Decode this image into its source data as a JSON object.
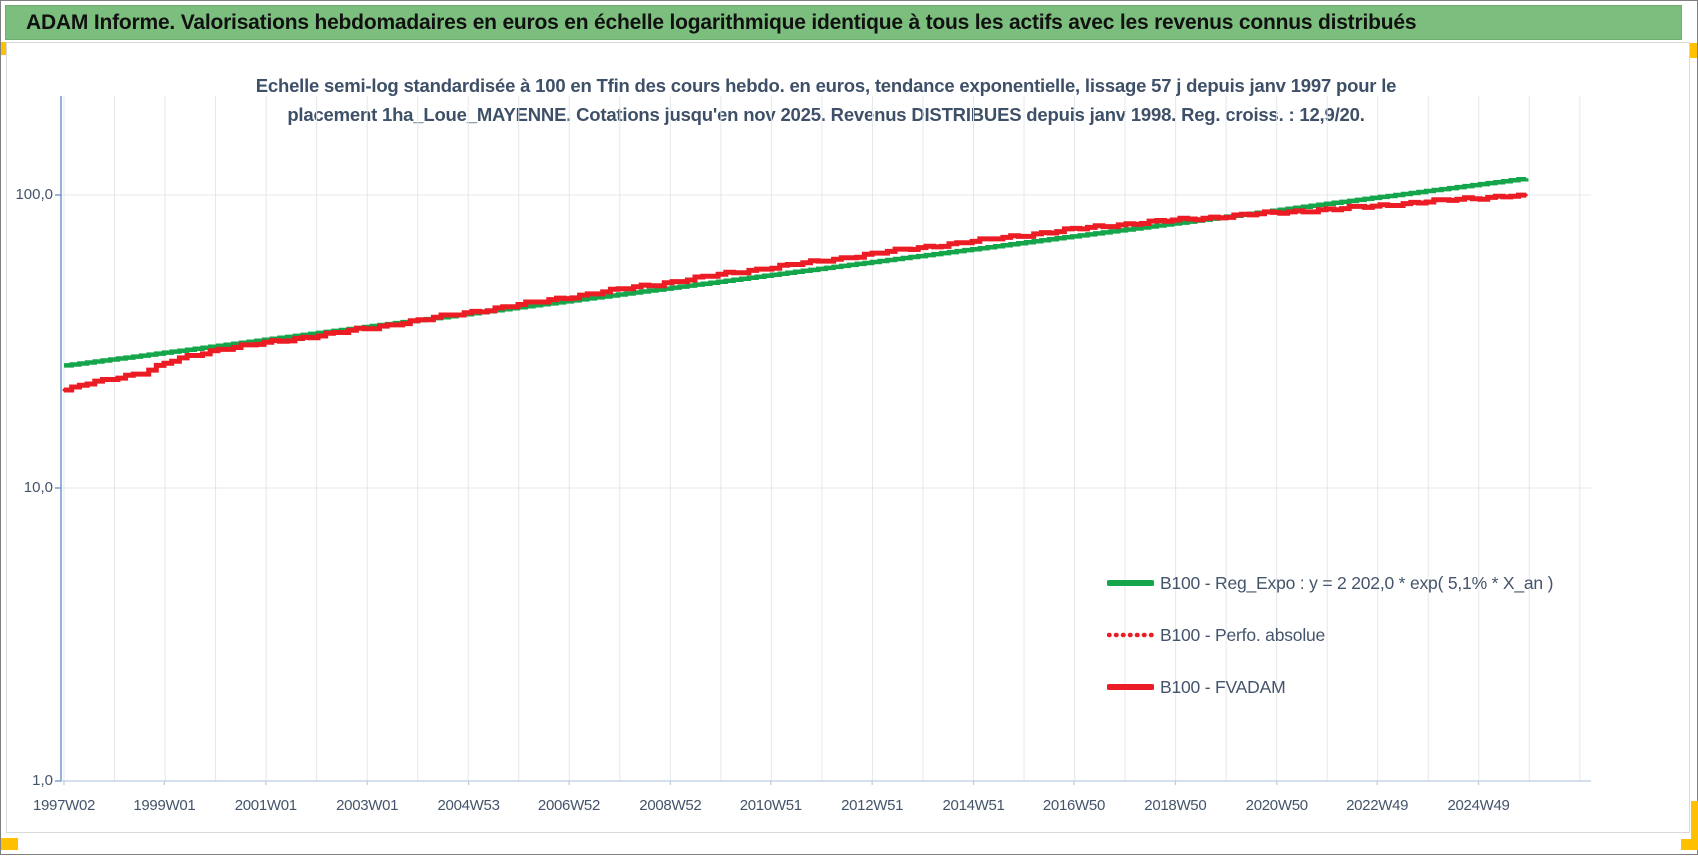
{
  "header": {
    "title": "ADAM Informe. Valorisations hebdomadaires en euros en échelle logarithmique identique à tous les actifs avec les revenus connus distribués"
  },
  "colors": {
    "header_green": "#7CBE7D",
    "handle_orange": "#FFC000",
    "title_text": "#3E5068",
    "axis_text": "#44546A",
    "series_green": "#15A64C",
    "series_red": "#EC1C24",
    "gridline": "#E4E8EC",
    "y_axis_line": "#5B87C5",
    "x_axis_line": "#BCCDE0"
  },
  "chart_data": {
    "type": "line",
    "title": "Echelle semi-log standardisée à 100 en Tfin des cours hebdo. en euros, tendance exponentielle, lissage 57 j depuis janv 1997 pour le placement 1ha_Loue_MAYENNE. Cotations jusqu'en nov 2025. Revenus DISTRIBUES depuis janv 1998. Reg. croiss. : 12,9/20.",
    "title_lines": [
      "Echelle semi-log standardisée à 100 en Tfin des cours hebdo. en euros, tendance exponentielle, lissage 57 j depuis janv 1997 pour le",
      "placement 1ha_Loue_MAYENNE. Cotations jusqu'en nov 2025. Revenus DISTRIBUES depuis janv 1998. Reg. croiss. : 12,9/20."
    ],
    "y_axis": {
      "scale": "log",
      "tick_labels": [
        "1,0",
        "10,0",
        "100,0"
      ],
      "tick_values": [
        1,
        10,
        100
      ],
      "min": 1,
      "max": 218,
      "grid": true
    },
    "x_axis": {
      "tick_labels": [
        "1997W02",
        "1999W01",
        "2001W01",
        "2003W01",
        "2004W53",
        "2006W52",
        "2008W52",
        "2010W51",
        "2012W51",
        "2014W51",
        "2016W50",
        "2018W50",
        "2020W50",
        "2022W49",
        "2024W49"
      ],
      "tick_years": [
        1997.03,
        1999.01,
        2001.01,
        2003.01,
        2005.01,
        2006.99,
        2008.99,
        2010.97,
        2012.97,
        2014.97,
        2016.95,
        2018.95,
        2020.95,
        2022.93,
        2024.93
      ],
      "minor_grid_step_years": 0.9966,
      "grid": true
    },
    "x_range": [
      1997.03,
      2025.87
    ],
    "legend": {
      "position": "inside-right-lower"
    },
    "series": [
      {
        "name": "B100 - Reg_Expo : y = 2 202,0 * exp( 5,1% *  X_an )",
        "color": "#15A64C",
        "style": "solid",
        "width": 4.5,
        "render": "trend",
        "points": [
          [
            1997.03,
            26.2
          ],
          [
            2025.87,
            114.1
          ]
        ]
      },
      {
        "name": "B100 - Perfo. absolue",
        "color": "#EC1C24",
        "style": "dotted",
        "width": 3,
        "render": "step",
        "points": [
          [
            1997.03,
            21.6
          ],
          [
            1997.5,
            22.8
          ],
          [
            1998.0,
            23.8
          ],
          [
            1998.6,
            24.8
          ],
          [
            1999.1,
            27.0
          ],
          [
            1999.6,
            28.6
          ],
          [
            2000.1,
            29.8
          ],
          [
            2000.6,
            30.6
          ],
          [
            2001.1,
            31.5
          ],
          [
            2002.1,
            33.3
          ],
          [
            2003.1,
            35.3
          ],
          [
            2004.1,
            37.6
          ],
          [
            2005.1,
            40.0
          ],
          [
            2006.1,
            42.5
          ],
          [
            2007.1,
            45.2
          ],
          [
            2008.1,
            48.0
          ],
          [
            2009.1,
            50.8
          ],
          [
            2010.1,
            54.0
          ],
          [
            2011.1,
            57.0
          ],
          [
            2012.1,
            60.0
          ],
          [
            2013.1,
            63.5
          ],
          [
            2014.1,
            66.8
          ],
          [
            2015.1,
            70.0
          ],
          [
            2016.1,
            73.5
          ],
          [
            2017.1,
            77.0
          ],
          [
            2018.1,
            80.0
          ],
          [
            2019.1,
            82.5
          ],
          [
            2020.1,
            85.0
          ],
          [
            2021.1,
            87.5
          ],
          [
            2022.1,
            89.5
          ],
          [
            2023.1,
            92.5
          ],
          [
            2024.1,
            95.5
          ],
          [
            2025.1,
            98.3
          ],
          [
            2025.87,
            100.0
          ]
        ]
      },
      {
        "name": "B100 - FVADAM",
        "color": "#EC1C24",
        "style": "solid",
        "width": 5,
        "render": "step",
        "points": [
          [
            1997.03,
            21.6
          ],
          [
            1997.5,
            22.8
          ],
          [
            1998.0,
            23.8
          ],
          [
            1998.6,
            24.8
          ],
          [
            1999.1,
            27.0
          ],
          [
            1999.6,
            28.6
          ],
          [
            2000.1,
            29.8
          ],
          [
            2000.6,
            30.6
          ],
          [
            2001.1,
            31.5
          ],
          [
            2002.1,
            33.3
          ],
          [
            2003.1,
            35.3
          ],
          [
            2004.1,
            37.6
          ],
          [
            2005.1,
            40.0
          ],
          [
            2006.1,
            42.5
          ],
          [
            2007.1,
            45.2
          ],
          [
            2008.1,
            48.0
          ],
          [
            2009.1,
            50.8
          ],
          [
            2010.1,
            54.0
          ],
          [
            2011.1,
            57.0
          ],
          [
            2012.1,
            60.0
          ],
          [
            2013.1,
            63.5
          ],
          [
            2014.1,
            66.8
          ],
          [
            2015.1,
            70.0
          ],
          [
            2016.1,
            73.5
          ],
          [
            2017.1,
            77.0
          ],
          [
            2018.1,
            80.0
          ],
          [
            2019.1,
            82.5
          ],
          [
            2020.1,
            85.0
          ],
          [
            2021.1,
            87.5
          ],
          [
            2022.1,
            89.5
          ],
          [
            2023.1,
            92.5
          ],
          [
            2024.1,
            95.5
          ],
          [
            2025.1,
            98.3
          ],
          [
            2025.87,
            100.0
          ]
        ]
      }
    ]
  }
}
